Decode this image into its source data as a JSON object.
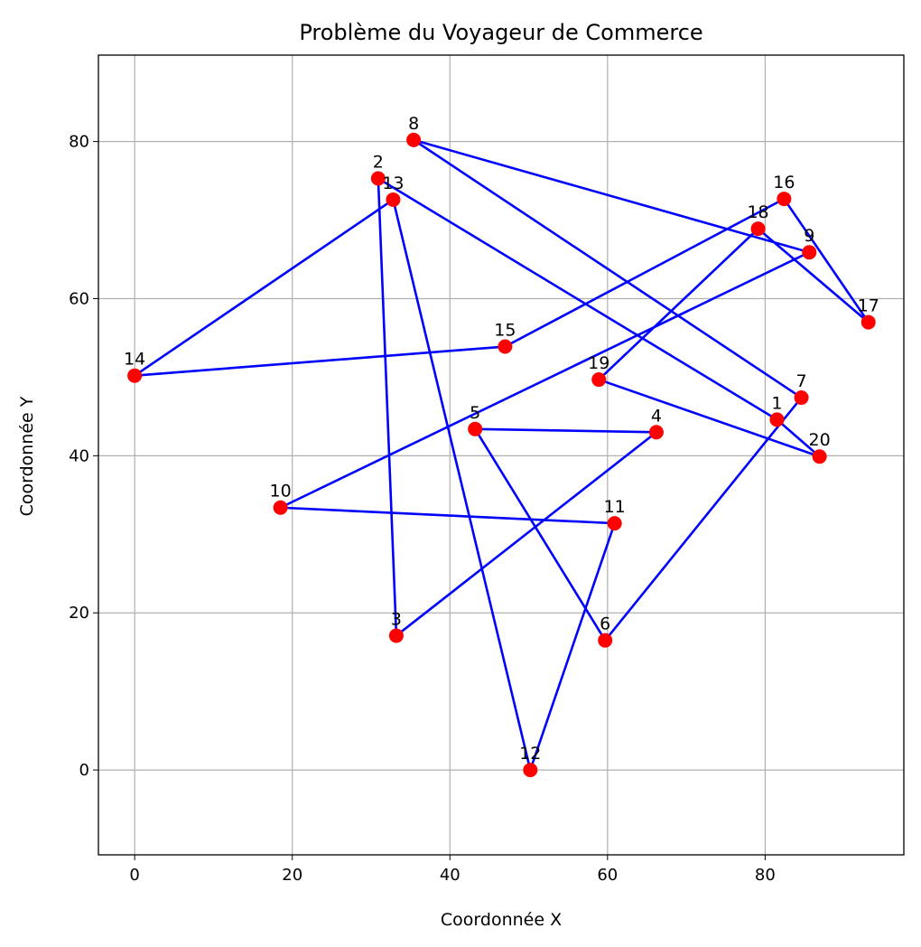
{
  "chart_data": {
    "type": "line",
    "title": "Problème du Voyageur de Commerce",
    "xlabel": "Coordonnée X",
    "ylabel": "Coordonnée Y",
    "xlim": [
      -4.6,
      97.6
    ],
    "ylim": [
      -10.8,
      91
    ],
    "xticks": [
      0,
      20,
      40,
      60,
      80
    ],
    "yticks": [
      0,
      20,
      40,
      60,
      80
    ],
    "grid": true,
    "line_color": "#0000ff",
    "marker_color": "#ff0000",
    "points": [
      {
        "label": "1",
        "x": 81.5,
        "y": 44.6
      },
      {
        "label": "2",
        "x": 30.9,
        "y": 75.3
      },
      {
        "label": "3",
        "x": 33.2,
        "y": 17.1
      },
      {
        "label": "4",
        "x": 66.2,
        "y": 43.0
      },
      {
        "label": "5",
        "x": 43.2,
        "y": 43.4
      },
      {
        "label": "6",
        "x": 59.7,
        "y": 16.5
      },
      {
        "label": "7",
        "x": 84.6,
        "y": 47.4
      },
      {
        "label": "8",
        "x": 35.4,
        "y": 80.2
      },
      {
        "label": "9",
        "x": 85.6,
        "y": 65.9
      },
      {
        "label": "10",
        "x": 18.5,
        "y": 33.4
      },
      {
        "label": "11",
        "x": 60.9,
        "y": 31.4
      },
      {
        "label": "12",
        "x": 50.2,
        "y": 0.0
      },
      {
        "label": "13",
        "x": 32.8,
        "y": 72.6
      },
      {
        "label": "14",
        "x": 0.0,
        "y": 50.2
      },
      {
        "label": "15",
        "x": 47.0,
        "y": 53.9
      },
      {
        "label": "16",
        "x": 82.4,
        "y": 72.7
      },
      {
        "label": "17",
        "x": 93.1,
        "y": 57.0
      },
      {
        "label": "18",
        "x": 79.1,
        "y": 68.9
      },
      {
        "label": "19",
        "x": 58.9,
        "y": 49.7
      },
      {
        "label": "20",
        "x": 86.9,
        "y": 39.9
      }
    ],
    "route": [
      "1",
      "2",
      "3",
      "4",
      "5",
      "6",
      "7",
      "8",
      "9",
      "10",
      "11",
      "12",
      "13",
      "14",
      "15",
      "16",
      "17",
      "18",
      "19",
      "20",
      "1"
    ]
  }
}
